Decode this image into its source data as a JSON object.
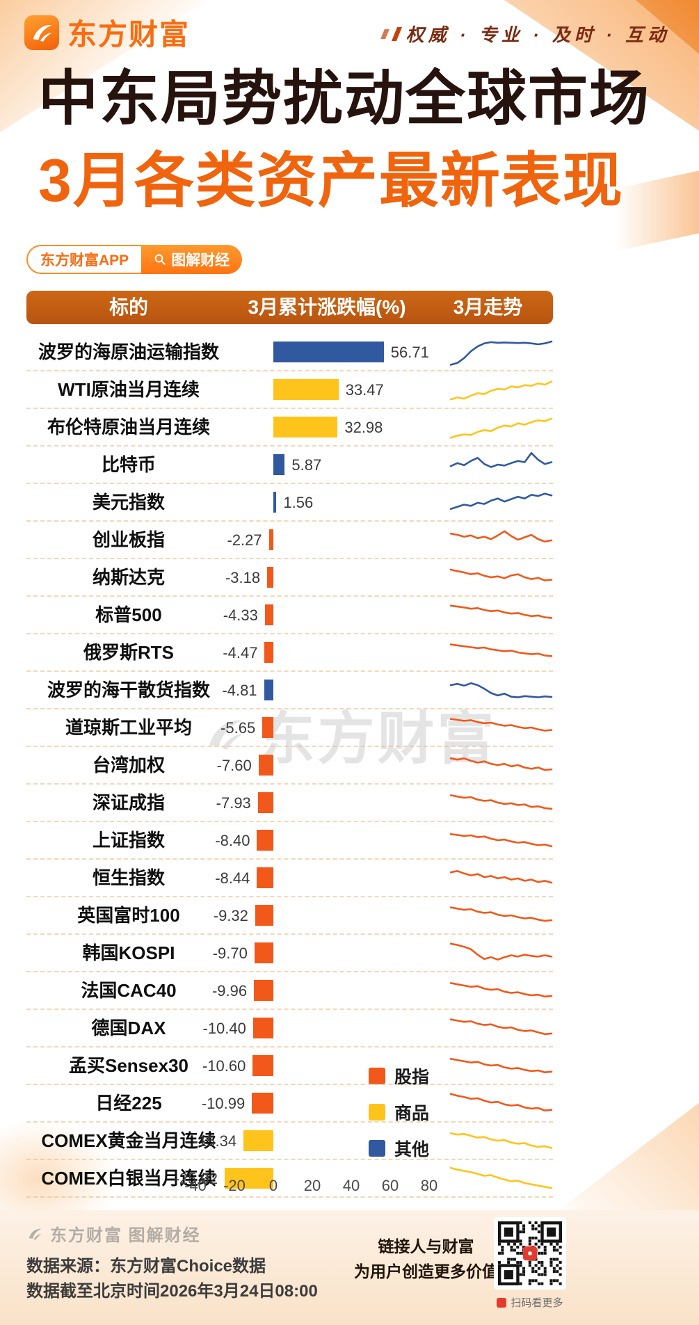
{
  "brand": {
    "logo_text": "东方财富",
    "tagline": "权威 · 专业 · 及时 · 互动"
  },
  "title": {
    "line1": "中东局势扰动全球市场",
    "line2": "3月各类资产最新表现"
  },
  "badges": {
    "app": "东方财富APP",
    "column": "图解财经"
  },
  "table_header": {
    "col1": "标的",
    "col2": "3月累计涨跌幅(%)",
    "col3": "3月走势"
  },
  "watermark": "东方财富",
  "colors": {
    "orange": "#f2581a",
    "yellow": "#ffc41c",
    "blue": "#30599f"
  },
  "legend": [
    {
      "label": "股指",
      "color": "orange"
    },
    {
      "label": "商品",
      "color": "yellow"
    },
    {
      "label": "其他",
      "color": "blue"
    }
  ],
  "chart_data": {
    "type": "bar",
    "title": "3月各类资产最新表现",
    "xlabel": "3月累计涨跌幅(%)",
    "xlim": [
      -40,
      80
    ],
    "axis_ticks": [
      -40,
      -20,
      0,
      20,
      40,
      60,
      80
    ],
    "rows": [
      {
        "label": "波罗的海原油运输指数",
        "value": 56.71,
        "value_label": "56.71",
        "group": "其他",
        "color": "blue",
        "spark": [
          8,
          14,
          30,
          52,
          68,
          78,
          82,
          80,
          81,
          80,
          79,
          80,
          78,
          75,
          78,
          84
        ]
      },
      {
        "label": "WTI原油当月连续",
        "value": 33.47,
        "value_label": "33.47",
        "group": "商品",
        "color": "yellow",
        "spark": [
          18,
          24,
          20,
          30,
          38,
          35,
          46,
          52,
          50,
          60,
          57,
          64,
          62,
          70,
          66,
          76
        ]
      },
      {
        "label": "布伦特原油当月连续",
        "value": 32.98,
        "value_label": "32.98",
        "group": "商品",
        "color": "yellow",
        "spark": [
          15,
          22,
          26,
          24,
          34,
          40,
          37,
          48,
          55,
          52,
          62,
          58,
          66,
          72,
          69,
          78
        ]
      },
      {
        "label": "比特币",
        "value": 5.87,
        "value_label": "5.87",
        "group": "其他",
        "color": "blue",
        "spark": [
          45,
          55,
          48,
          62,
          72,
          52,
          42,
          50,
          47,
          55,
          62,
          58,
          88,
          66,
          52,
          58
        ]
      },
      {
        "label": "美元指数",
        "value": 1.56,
        "value_label": "1.56",
        "group": "其他",
        "color": "blue",
        "spark": [
          28,
          35,
          42,
          38,
          48,
          44,
          55,
          62,
          52,
          60,
          68,
          62,
          74,
          70,
          78,
          72
        ]
      },
      {
        "label": "创业板指",
        "value": -2.27,
        "value_label": "-2.27",
        "group": "股指",
        "color": "orange",
        "spark": [
          70,
          66,
          60,
          64,
          55,
          60,
          52,
          64,
          78,
          62,
          50,
          58,
          66,
          52,
          44,
          48
        ]
      },
      {
        "label": "纳斯达克",
        "value": -3.18,
        "value_label": "-3.18",
        "group": "股指",
        "color": "orange",
        "spark": [
          75,
          70,
          66,
          60,
          63,
          55,
          50,
          53,
          47,
          56,
          60,
          50,
          44,
          48,
          40,
          42
        ]
      },
      {
        "label": "标普500",
        "value": -4.33,
        "value_label": "-4.33",
        "group": "股指",
        "color": "orange",
        "spark": [
          80,
          77,
          74,
          70,
          72,
          66,
          62,
          64,
          58,
          54,
          56,
          50,
          46,
          48,
          42,
          40
        ]
      },
      {
        "label": "俄罗斯RTS",
        "value": -4.47,
        "value_label": "-4.47",
        "group": "股指",
        "color": "orange",
        "spark": [
          76,
          73,
          70,
          67,
          64,
          66,
          60,
          57,
          54,
          56,
          50,
          47,
          44,
          46,
          40,
          38
        ]
      },
      {
        "label": "波罗的海干散货指数",
        "value": -4.81,
        "value_label": "-4.81",
        "group": "其他",
        "color": "blue",
        "spark": [
          66,
          70,
          64,
          72,
          66,
          54,
          40,
          32,
          38,
          28,
          26,
          30,
          28,
          26,
          29,
          27
        ]
      },
      {
        "label": "道琼斯工业平均",
        "value": -5.65,
        "value_label": "-5.65",
        "group": "股指",
        "color": "orange",
        "spark": [
          78,
          75,
          72,
          74,
          68,
          64,
          66,
          60,
          56,
          58,
          52,
          48,
          50,
          44,
          40,
          42
        ]
      },
      {
        "label": "台湾加权",
        "value": -7.6,
        "value_label": "-7.60",
        "group": "股指",
        "color": "orange",
        "spark": [
          72,
          68,
          72,
          64,
          58,
          62,
          54,
          50,
          54,
          46,
          50,
          42,
          38,
          42,
          34,
          36
        ]
      },
      {
        "label": "深证成指",
        "value": -7.93,
        "value_label": "-7.93",
        "group": "股指",
        "color": "orange",
        "spark": [
          74,
          70,
          66,
          68,
          60,
          56,
          58,
          50,
          46,
          48,
          42,
          44,
          36,
          38,
          32,
          30
        ]
      },
      {
        "label": "上证指数",
        "value": -8.4,
        "value_label": "-8.40",
        "group": "股指",
        "color": "orange",
        "spark": [
          70,
          67,
          64,
          66,
          60,
          62,
          55,
          50,
          52,
          46,
          42,
          44,
          38,
          34,
          36,
          30
        ]
      },
      {
        "label": "恒生指数",
        "value": -8.44,
        "value_label": "-8.44",
        "group": "股指",
        "color": "orange",
        "spark": [
          68,
          72,
          64,
          58,
          62,
          52,
          56,
          48,
          52,
          44,
          48,
          40,
          44,
          36,
          40,
          34
        ]
      },
      {
        "label": "英国富时100",
        "value": -9.32,
        "value_label": "-9.32",
        "group": "股指",
        "color": "orange",
        "spark": [
          76,
          72,
          68,
          70,
          62,
          58,
          60,
          52,
          48,
          50,
          44,
          40,
          42,
          36,
          32,
          34
        ]
      },
      {
        "label": "韩国KOSPI",
        "value": -9.7,
        "value_label": "-9.70",
        "group": "股指",
        "color": "orange",
        "spark": [
          80,
          76,
          70,
          62,
          44,
          30,
          36,
          28,
          36,
          42,
          38,
          44,
          40,
          38,
          42,
          38
        ]
      },
      {
        "label": "法国CAC40",
        "value": -9.96,
        "value_label": "-9.96",
        "group": "股指",
        "color": "orange",
        "spark": [
          74,
          70,
          66,
          62,
          64,
          56,
          52,
          54,
          46,
          42,
          44,
          38,
          34,
          36,
          30,
          32
        ]
      },
      {
        "label": "德国DAX",
        "value": -10.4,
        "value_label": "-10.40",
        "group": "股指",
        "color": "orange",
        "spark": [
          78,
          74,
          70,
          72,
          64,
          60,
          62,
          54,
          50,
          52,
          44,
          40,
          42,
          36,
          30,
          32
        ]
      },
      {
        "label": "孟买Sensex30",
        "value": -10.6,
        "value_label": "-10.60",
        "group": "股指",
        "color": "orange",
        "spark": [
          72,
          68,
          64,
          60,
          62,
          54,
          50,
          52,
          44,
          40,
          42,
          36,
          32,
          34,
          28,
          30
        ]
      },
      {
        "label": "日经225",
        "value": -10.99,
        "value_label": "-10.99",
        "group": "股指",
        "color": "orange",
        "spark": [
          80,
          74,
          70,
          64,
          66,
          58,
          52,
          54,
          46,
          42,
          44,
          36,
          32,
          34,
          26,
          28
        ]
      },
      {
        "label": "COMEX黄金当月连续",
        "value": -15.34,
        "value_label": "-15.34",
        "group": "商品",
        "color": "yellow",
        "spark": [
          74,
          70,
          72,
          66,
          60,
          62,
          54,
          50,
          52,
          44,
          40,
          42,
          34,
          30,
          32,
          26
        ]
      },
      {
        "label": "COMEX白银当月连续",
        "value": -25.02,
        "value_label": "-25.02",
        "group": "商品",
        "color": "yellow",
        "spark": [
          84,
          78,
          74,
          70,
          64,
          58,
          60,
          52,
          46,
          40,
          42,
          34,
          30,
          26,
          22,
          18
        ]
      }
    ]
  },
  "footer": {
    "brand": "东方财富 图解财经",
    "source": "数据来源：东方财富Choice数据",
    "asof": "数据截至北京时间2026年3月24日08:00",
    "slogan_line1": "链接人与财富",
    "slogan_line2": "为用户创造更多价值",
    "qr_caption": "扫码看更多"
  }
}
